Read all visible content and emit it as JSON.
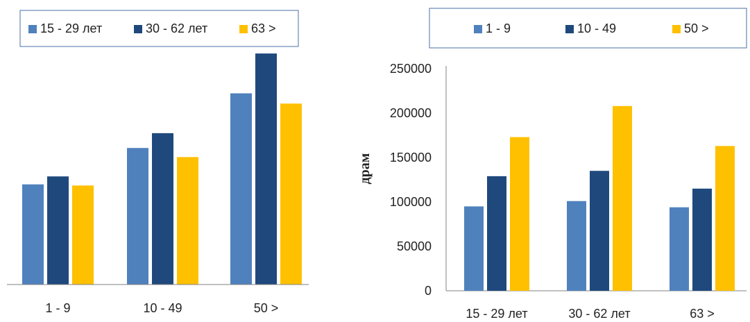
{
  "colors": {
    "series1": "#4f81bd",
    "series2": "#1f497d",
    "series3": "#ffc000",
    "axis": "#808080",
    "legend_border": "#4a6fa5"
  },
  "chart_data": [
    {
      "type": "bar",
      "categories": [
        "1 - 9",
        "10 - 49",
        "50 >"
      ],
      "series": [
        {
          "name": "15 - 29 лет",
          "values": [
            88000,
            120000,
            168000
          ]
        },
        {
          "name": "30 - 62 лет",
          "values": [
            95000,
            133000,
            203000
          ]
        },
        {
          "name": "63  >",
          "values": [
            87000,
            112000,
            159000
          ]
        }
      ],
      "ylim": [
        0,
        250000
      ],
      "xlabel": "",
      "ylabel": "",
      "y_ticks_visible": false,
      "legend_position": "top",
      "grid": false
    },
    {
      "type": "bar",
      "categories": [
        "15 - 29 лет",
        "30 - 62 лет",
        "63  >"
      ],
      "series": [
        {
          "name": "1 - 9",
          "values": [
            95000,
            101000,
            94000
          ]
        },
        {
          "name": "10 - 49",
          "values": [
            129000,
            135000,
            115000
          ]
        },
        {
          "name": "50 >",
          "values": [
            173000,
            208000,
            163000
          ]
        }
      ],
      "ylim": [
        0,
        250000
      ],
      "y_ticks": [
        0,
        50000,
        100000,
        150000,
        200000,
        250000
      ],
      "xlabel": "",
      "ylabel": "драм",
      "legend_position": "top",
      "grid": false
    }
  ]
}
